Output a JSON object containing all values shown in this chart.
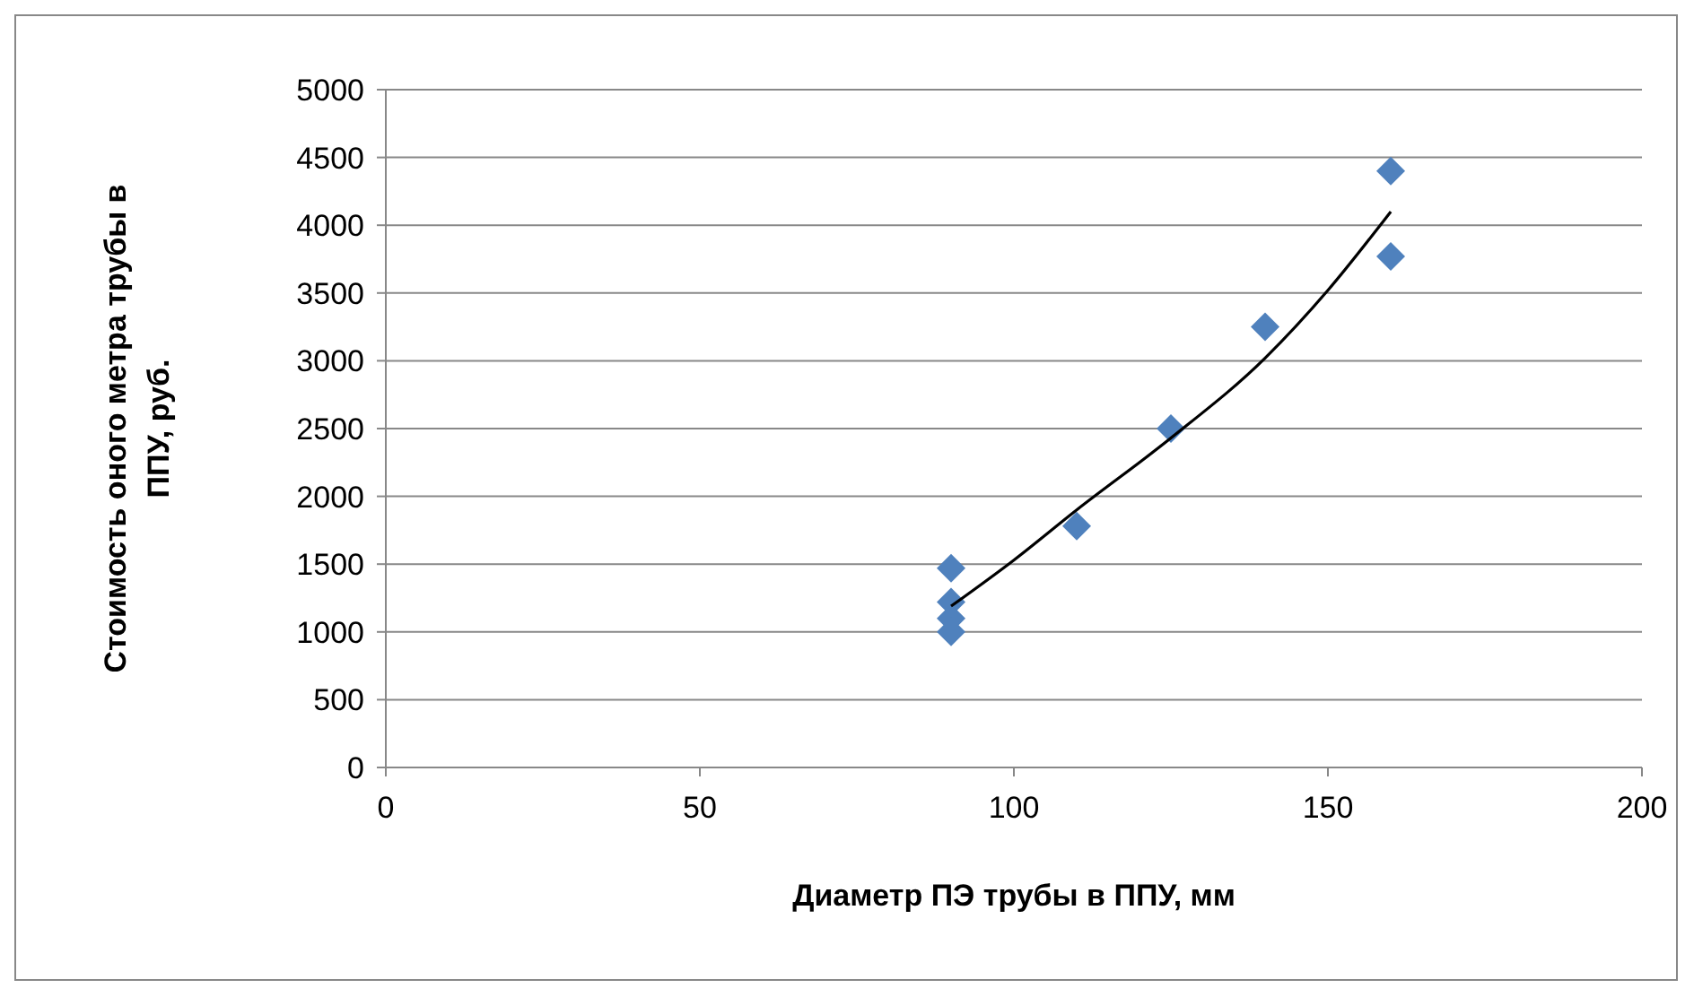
{
  "chart_data": {
    "type": "scatter",
    "xlabel": "Диаметр ПЭ трубы в ППУ, мм",
    "ylabel": "Стоимость оного метра трубы в ППУ, руб.",
    "xlim": [
      0,
      200
    ],
    "xticks": [
      0,
      50,
      100,
      150,
      200
    ],
    "ylim": [
      0,
      5000
    ],
    "yticks": [
      0,
      500,
      1000,
      1500,
      2000,
      2500,
      3000,
      3500,
      4000,
      4500,
      5000
    ],
    "grid": "y",
    "marker": "diamond",
    "series": [
      {
        "color": "#4f81bd",
        "x": [
          90,
          90,
          90,
          90,
          110,
          125,
          140,
          160,
          160
        ],
        "values": [
          1470,
          1220,
          1100,
          1000,
          1780,
          2500,
          3250,
          4400,
          3770
        ]
      },
      {
        "type": "line",
        "color": "#000000",
        "marker": "none",
        "x": [
          90,
          100,
          110,
          125,
          140,
          150,
          160
        ],
        "values": [
          1190,
          1530,
          1900,
          2430,
          3020,
          3520,
          4100
        ]
      }
    ]
  }
}
